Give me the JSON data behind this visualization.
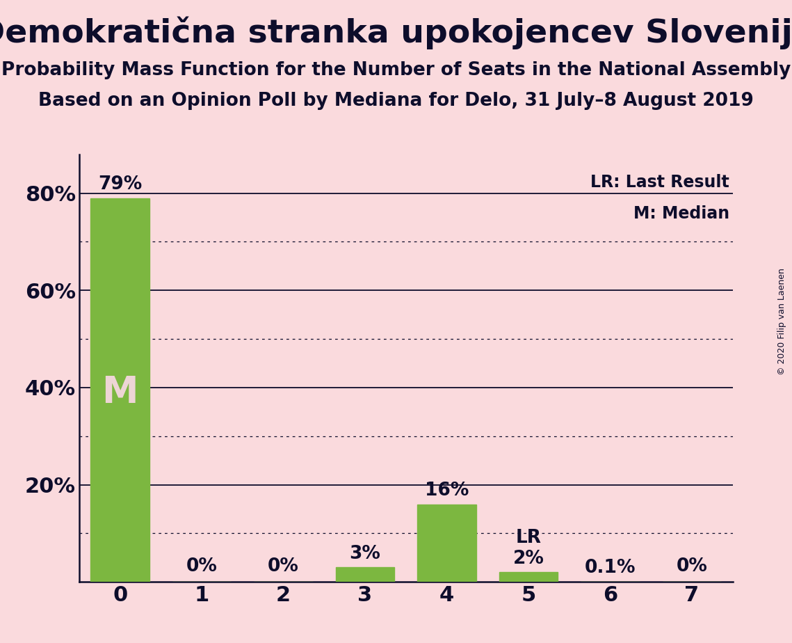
{
  "title": "Demokratična stranka upokojencev Slovenije",
  "subtitle1": "Probability Mass Function for the Number of Seats in the National Assembly",
  "subtitle2": "Based on an Opinion Poll by Mediana for Delo, 31 July–8 August 2019",
  "copyright": "© 2020 Filip van Laenen",
  "categories": [
    0,
    1,
    2,
    3,
    4,
    5,
    6,
    7
  ],
  "values": [
    0.79,
    0.0,
    0.0,
    0.03,
    0.16,
    0.02,
    0.001,
    0.0
  ],
  "bar_labels": [
    "79%",
    "0%",
    "0%",
    "3%",
    "16%",
    "2%",
    "0.1%",
    "0%"
  ],
  "bar_color": "#7CB740",
  "background_color": "#FADADD",
  "text_color": "#0D0D2B",
  "median_bar": 0,
  "lr_bar": 5,
  "median_label": "M",
  "lr_label": "LR",
  "legend_lr": "LR: Last Result",
  "legend_m": "M: Median",
  "ylim": [
    0,
    0.88
  ],
  "yticks": [
    0.2,
    0.4,
    0.6,
    0.8
  ],
  "ytick_labels": [
    "20%",
    "40%",
    "60%",
    "80%"
  ],
  "solid_gridlines": [
    0.2,
    0.4,
    0.6,
    0.8
  ],
  "dotted_gridlines": [
    0.1,
    0.3,
    0.5,
    0.7
  ],
  "bar_label_fontsize": 19,
  "title_fontsize": 34,
  "subtitle_fontsize": 19,
  "axis_tick_fontsize": 22,
  "legend_fontsize": 17,
  "bar_width": 0.72
}
